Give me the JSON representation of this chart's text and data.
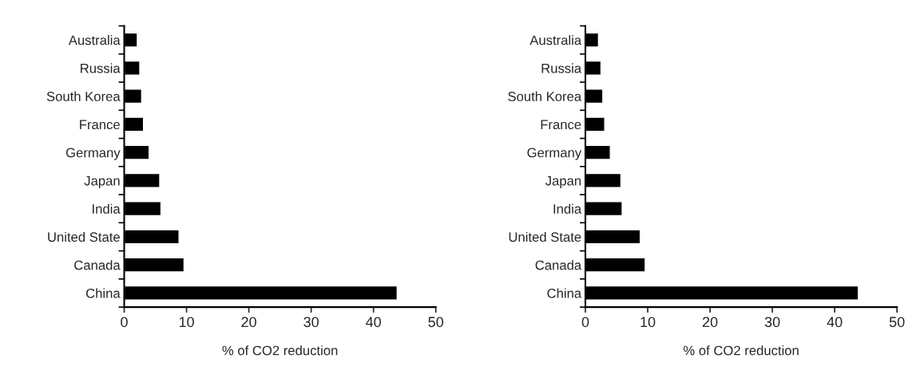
{
  "chart_data": [
    {
      "type": "bar",
      "orientation": "horizontal",
      "xlabel": "% of CO2 reduction",
      "categories": [
        "Australia",
        "Russia",
        "South Korea",
        "France",
        "Germany",
        "Japan",
        "India",
        "United State",
        "Canada",
        "China"
      ],
      "values": [
        2.1,
        2.5,
        2.8,
        3.1,
        4.0,
        5.7,
        5.9,
        8.8,
        9.6,
        43.8
      ],
      "color": "#000000",
      "xlim": [
        0,
        50
      ],
      "xticks": [
        0,
        10,
        20,
        30,
        40,
        50
      ],
      "grid": false
    },
    {
      "type": "bar",
      "orientation": "horizontal",
      "xlabel": "% of CO2 reduction",
      "categories": [
        "Australia",
        "Russia",
        "South Korea",
        "France",
        "Germany",
        "Japan",
        "India",
        "United State",
        "Canada",
        "China"
      ],
      "values": [
        2.1,
        2.5,
        2.8,
        3.1,
        4.0,
        5.7,
        5.9,
        8.8,
        9.6,
        43.8
      ],
      "color": "#000000",
      "xlim": [
        0,
        50
      ],
      "xticks": [
        0,
        10,
        20,
        30,
        40,
        50
      ],
      "grid": false
    }
  ]
}
